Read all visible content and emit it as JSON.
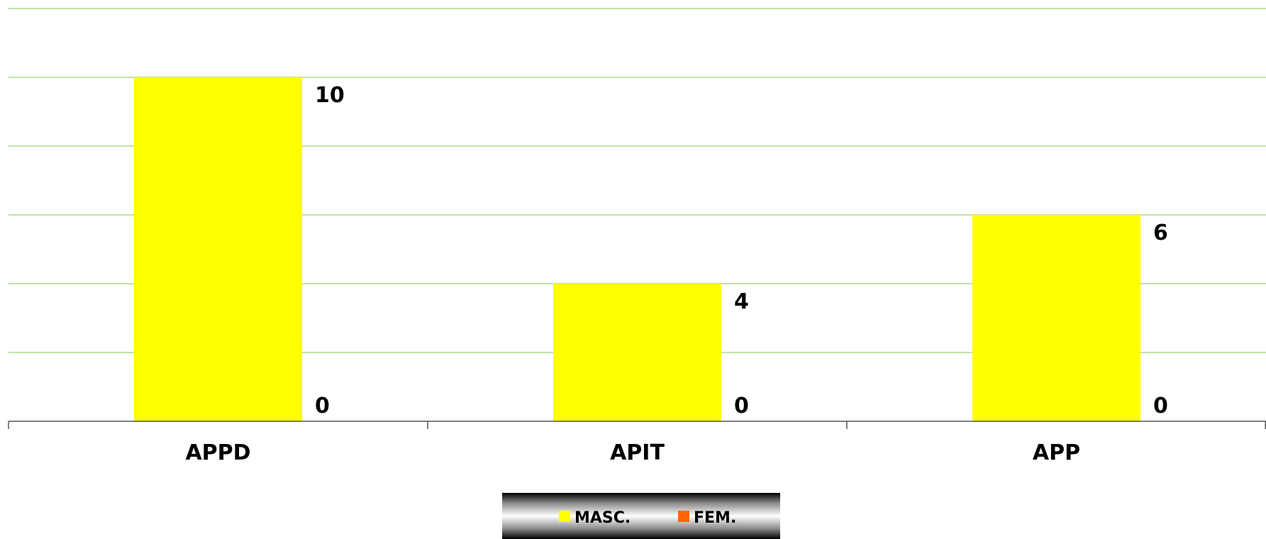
{
  "chart_data": {
    "type": "bar",
    "categories": [
      "APPD",
      "APIT",
      "APP"
    ],
    "series": [
      {
        "name": "MASC.",
        "color": "#FFFF00",
        "values": [
          10,
          4,
          6
        ]
      },
      {
        "name": "FEM.",
        "color": "#FF6600",
        "values": [
          0,
          0,
          0
        ]
      }
    ],
    "ylim": [
      0,
      12
    ],
    "ytick_step": 2,
    "grid": true,
    "grid_color": "#A8D890",
    "legend_position": "bottom-center",
    "title": "",
    "xlabel": "",
    "ylabel": ""
  }
}
